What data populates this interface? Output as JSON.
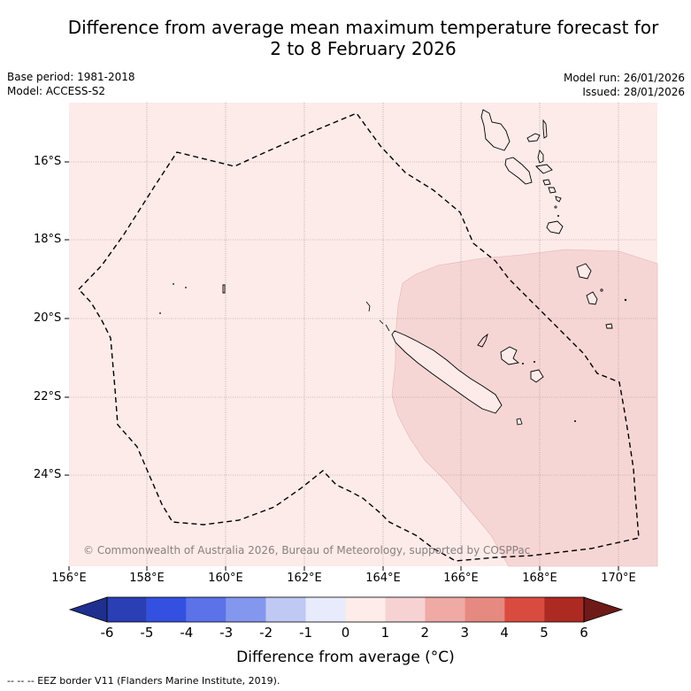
{
  "title_line1": "Difference from average mean maximum temperature forecast for",
  "title_line2": "2 to 8 February 2026",
  "meta_left": {
    "base_period": "Base period: 1981-2018",
    "model": "Model: ACCESS-S2"
  },
  "meta_right": {
    "model_run": "Model run: 26/01/2026",
    "issued": "Issued: 28/01/2026"
  },
  "copyright": "© Commonwealth of Australia 2026, Bureau of Meteorology, supported by COSPPac",
  "lat_labels": [
    "16°S",
    "18°S",
    "20°S",
    "22°S",
    "24°S"
  ],
  "lon_labels": [
    "156°E",
    "158°E",
    "160°E",
    "162°E",
    "164°E",
    "166°E",
    "168°E",
    "170°E"
  ],
  "colorbar": {
    "ticks": [
      "-6",
      "-5",
      "-4",
      "-3",
      "-2",
      "-1",
      "0",
      "1",
      "2",
      "3",
      "4",
      "5",
      "6"
    ],
    "title": "Difference from average (°C)",
    "colors": [
      "#1f2f8f",
      "#2a3fb3",
      "#3450e0",
      "#5b72e8",
      "#8497ee",
      "#c0c8f4",
      "#e8ebfb",
      "#fdecea",
      "#f6d3d2",
      "#efaaa5",
      "#e68980",
      "#da4b3f",
      "#ad2a22",
      "#6e1a18"
    ]
  },
  "map_colors": {
    "background_anomaly": "#fcebe9",
    "region_anomaly": "#f6d6d5"
  },
  "footer": "--  --  -- EEZ border V11 (Flanders Marine Institute, 2019)."
}
